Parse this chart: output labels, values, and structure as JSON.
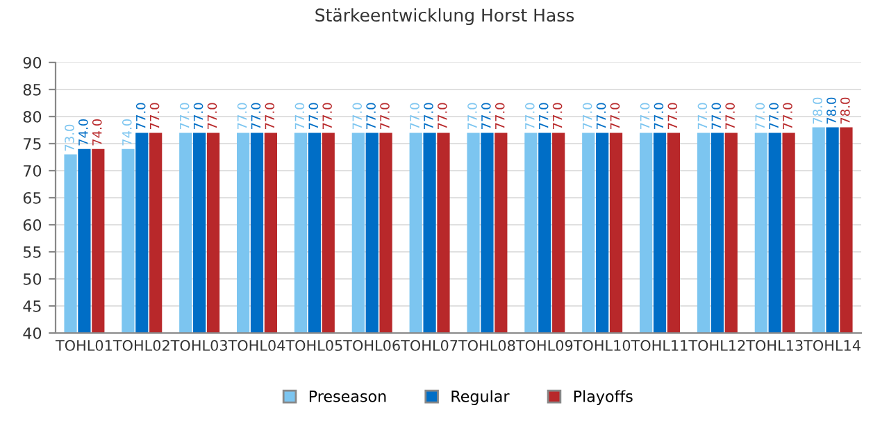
{
  "chart_data": {
    "type": "bar",
    "title": "Stärkeentwicklung Horst Hass",
    "categories": [
      "TOHL01",
      "TOHL02",
      "TOHL03",
      "TOHL04",
      "TOHL05",
      "TOHL06",
      "TOHL07",
      "TOHL08",
      "TOHL09",
      "TOHL10",
      "TOHL11",
      "TOHL12",
      "TOHL13",
      "TOHL14"
    ],
    "series": [
      {
        "name": "Preseason",
        "color": "#7cc5f0",
        "values": [
          73,
          74,
          77,
          77,
          77,
          77,
          77,
          77,
          77,
          77,
          77,
          77,
          77,
          78
        ],
        "value_labels": [
          "73.0",
          "74.0",
          "77.0",
          "77.0",
          "77.0",
          "77.0",
          "77.0",
          "77.0",
          "77.0",
          "77.0",
          "77.0",
          "77.0",
          "77.0",
          "78.0"
        ]
      },
      {
        "name": "Regular",
        "color": "#006ec6",
        "values": [
          74,
          77,
          77,
          77,
          77,
          77,
          77,
          77,
          77,
          77,
          77,
          77,
          77,
          78
        ],
        "value_labels": [
          "74.0",
          "77.0",
          "77.0",
          "77.0",
          "77.0",
          "77.0",
          "77.0",
          "77.0",
          "77.0",
          "77.0",
          "77.0",
          "77.0",
          "77.0",
          "78.0"
        ]
      },
      {
        "name": "Playoffs",
        "color": "#b8282a",
        "values": [
          74,
          77,
          77,
          77,
          77,
          77,
          77,
          77,
          77,
          77,
          77,
          77,
          77,
          78
        ],
        "value_labels": [
          "74.0",
          "77.0",
          "77.0",
          "77.0",
          "77.0",
          "77.0",
          "77.0",
          "77.0",
          "77.0",
          "77.0",
          "77.0",
          "77.0",
          "77.0",
          "78.0"
        ]
      }
    ],
    "ylim": [
      40,
      90
    ],
    "yticks": [
      40,
      45,
      50,
      55,
      60,
      65,
      70,
      75,
      80,
      85,
      90
    ],
    "grid": "y",
    "legend": "bottom"
  }
}
